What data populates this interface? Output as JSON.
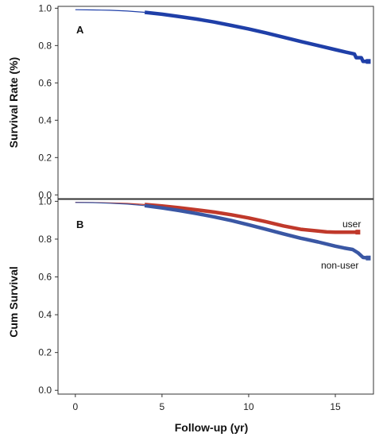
{
  "chart_data": [
    {
      "type": "line",
      "panel_label": "A",
      "title": "",
      "xlabel": "",
      "ylabel": "Survival Rate (%)",
      "xlim": [
        -1,
        17.2
      ],
      "ylim": [
        -0.02,
        1.01
      ],
      "xticks": [],
      "yticks": [
        "0.0",
        "0.2",
        "0.4",
        "0.6",
        "0.8",
        "1.0"
      ],
      "grid": false,
      "series": [
        {
          "name": "",
          "color": "#1f3fa8",
          "x": [
            0,
            1,
            2,
            3,
            4,
            5,
            6,
            7,
            8,
            9,
            10,
            11,
            12,
            13,
            14,
            15,
            15.6,
            16.1,
            16.2,
            16.5,
            16.6,
            16.9
          ],
          "y": [
            0.992,
            0.991,
            0.989,
            0.985,
            0.978,
            0.968,
            0.955,
            0.942,
            0.926,
            0.908,
            0.889,
            0.868,
            0.845,
            0.822,
            0.8,
            0.778,
            0.765,
            0.755,
            0.735,
            0.735,
            0.715,
            0.715
          ]
        }
      ]
    },
    {
      "type": "line",
      "panel_label": "B",
      "title": "",
      "xlabel": "Follow-up (yr)",
      "ylabel": "Cum Survival",
      "xlim": [
        -1,
        17.2
      ],
      "ylim": [
        -0.02,
        1.01
      ],
      "xticks": [
        "0",
        "5",
        "10",
        "15"
      ],
      "yticks": [
        "0.0",
        "0.2",
        "0.4",
        "0.6",
        "0.8",
        "1.0"
      ],
      "grid": false,
      "series": [
        {
          "name": "user",
          "color": "#c0392b",
          "x": [
            0,
            1,
            2,
            3,
            4,
            5,
            6,
            7,
            8,
            9,
            10,
            11,
            12,
            13,
            14,
            14.5,
            15,
            15.5,
            16,
            16.3
          ],
          "y": [
            0.995,
            0.994,
            0.992,
            0.989,
            0.983,
            0.975,
            0.966,
            0.955,
            0.943,
            0.929,
            0.912,
            0.892,
            0.87,
            0.852,
            0.843,
            0.838,
            0.837,
            0.837,
            0.837,
            0.837
          ]
        },
        {
          "name": "non-user",
          "color": "#3a57a4",
          "x": [
            0,
            1,
            2,
            3,
            4,
            5,
            6,
            7,
            8,
            9,
            10,
            11,
            12,
            13,
            14,
            15,
            15.5,
            16,
            16.3,
            16.6,
            16.9
          ],
          "y": [
            0.994,
            0.993,
            0.99,
            0.985,
            0.977,
            0.965,
            0.951,
            0.935,
            0.918,
            0.898,
            0.876,
            0.852,
            0.828,
            0.805,
            0.785,
            0.763,
            0.753,
            0.745,
            0.728,
            0.703,
            0.7
          ]
        }
      ]
    }
  ]
}
